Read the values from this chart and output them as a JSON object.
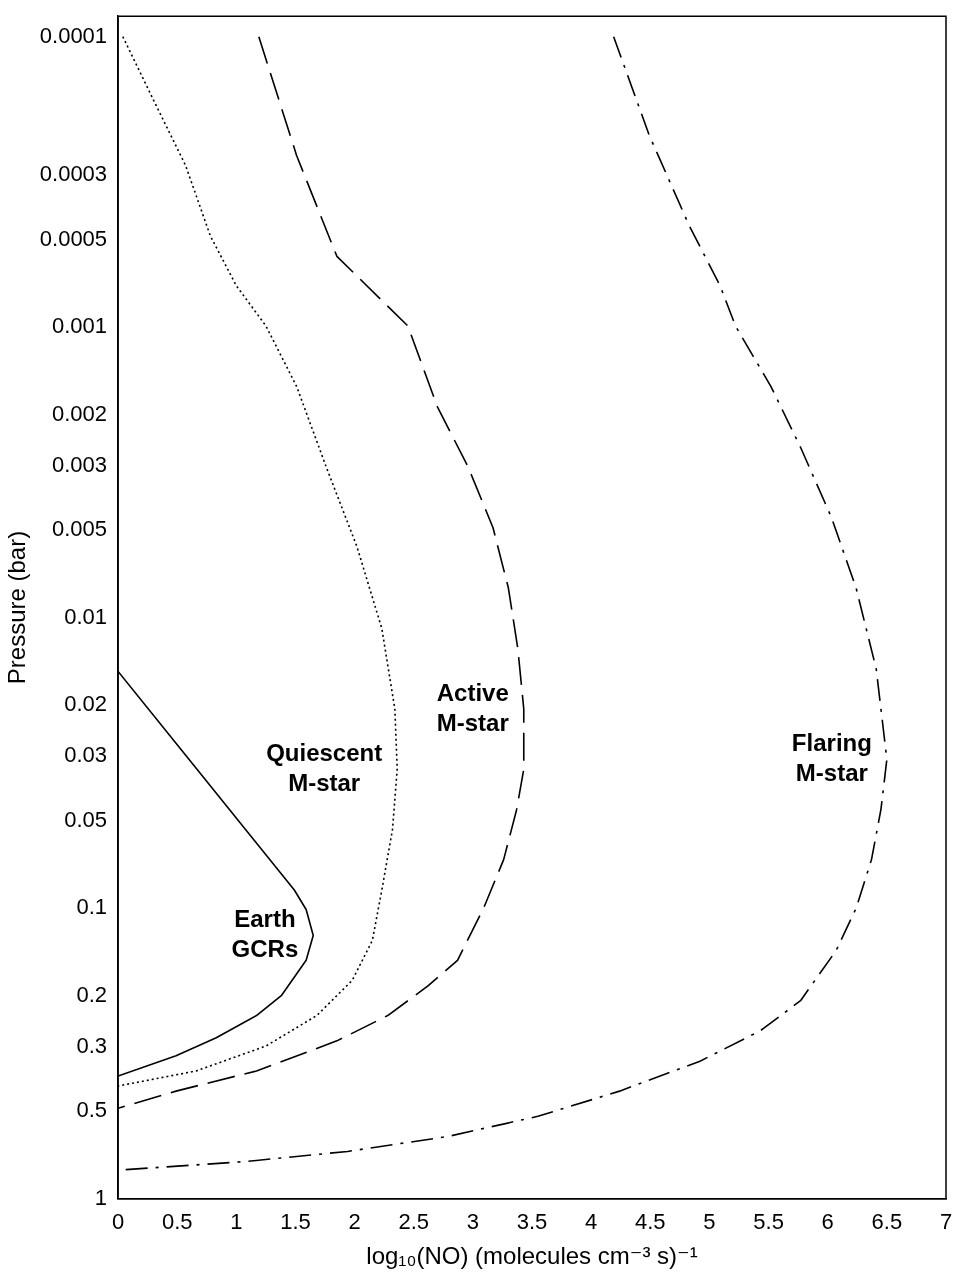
{
  "chart_data": {
    "type": "line",
    "xlabel": "log₁₀(NO) (molecules cm⁻³ s)⁻¹",
    "ylabel": "Pressure (bar)",
    "log": "y",
    "grid": false,
    "legend": false,
    "marker": "none",
    "xlim": [
      0,
      7
    ],
    "xticks": [
      0,
      0.5,
      1,
      1.5,
      2,
      2.5,
      3,
      3.5,
      4,
      4.5,
      5,
      5.5,
      6,
      6.5,
      7
    ],
    "ylim": [
      1,
      8.5e-05
    ],
    "yticks": [
      0.0001,
      0.0003,
      0.0005,
      0.001,
      0.002,
      0.003,
      0.005,
      0.01,
      0.02,
      0.03,
      0.05,
      0.1,
      0.2,
      0.3,
      0.5,
      1
    ],
    "series": [
      {
        "name": "Earth\nGCRs",
        "color": "#000000",
        "line_style": "solid",
        "x": [
          0,
          1.49,
          1.59,
          1.65,
          1.59,
          1.38,
          1.17,
          0.83,
          0.49,
          0
        ],
        "values": [
          0.0153,
          0.0865,
          0.101,
          0.124,
          0.151,
          0.2,
          0.234,
          0.279,
          0.322,
          0.378
        ]
      },
      {
        "name": "Quiescent\nM-star",
        "color": "#000000",
        "line_style": "dotted",
        "x": [
          0.04,
          0.32,
          0.57,
          0.78,
          1.0,
          1.25,
          1.51,
          1.76,
          2.02,
          2.23,
          2.34,
          2.36,
          2.32,
          2.23,
          2.15,
          1.98,
          1.68,
          1.25,
          0.66,
          0
        ],
        "values": [
          0.0001,
          0.000172,
          0.000277,
          0.000485,
          0.00072,
          0.00099,
          0.0016,
          0.00303,
          0.0057,
          0.0109,
          0.0206,
          0.0332,
          0.0536,
          0.0865,
          0.129,
          0.177,
          0.234,
          0.298,
          0.363,
          0.409
        ]
      },
      {
        "name": "Active\nM-star",
        "color": "#000000",
        "line_style": "dashed",
        "x": [
          1.19,
          1.51,
          1.85,
          2.19,
          2.45,
          2.7,
          2.96,
          3.17,
          3.3,
          3.38,
          3.43,
          3.43,
          3.37,
          3.26,
          3.09,
          2.87,
          2.62,
          2.28,
          1.85,
          1.17,
          0.49,
          0
        ],
        "values": [
          0.0001,
          0.000257,
          0.00057,
          0.00078,
          0.00099,
          0.00188,
          0.00303,
          0.0049,
          0.0079,
          0.0128,
          0.0206,
          0.0332,
          0.0457,
          0.068,
          0.1,
          0.151,
          0.185,
          0.234,
          0.286,
          0.363,
          0.426,
          0.488
        ]
      },
      {
        "name": "Flaring\nM-star",
        "color": "#000000",
        "line_style": "dashdot",
        "x": [
          4.19,
          4.49,
          4.83,
          5.09,
          5.22,
          5.52,
          5.77,
          6.03,
          6.24,
          6.41,
          6.5,
          6.45,
          6.37,
          6.24,
          6.07,
          5.77,
          5.43,
          4.92,
          4.24,
          3.55,
          2.79,
          1.94,
          1.08,
          0.06
        ],
        "values": [
          0.0001,
          0.000218,
          0.000448,
          0.00072,
          0.00099,
          0.0016,
          0.00259,
          0.0045,
          0.0079,
          0.015,
          0.0307,
          0.0457,
          0.068,
          0.1,
          0.14,
          0.208,
          0.264,
          0.336,
          0.426,
          0.52,
          0.61,
          0.687,
          0.744,
          0.794
        ]
      }
    ]
  }
}
